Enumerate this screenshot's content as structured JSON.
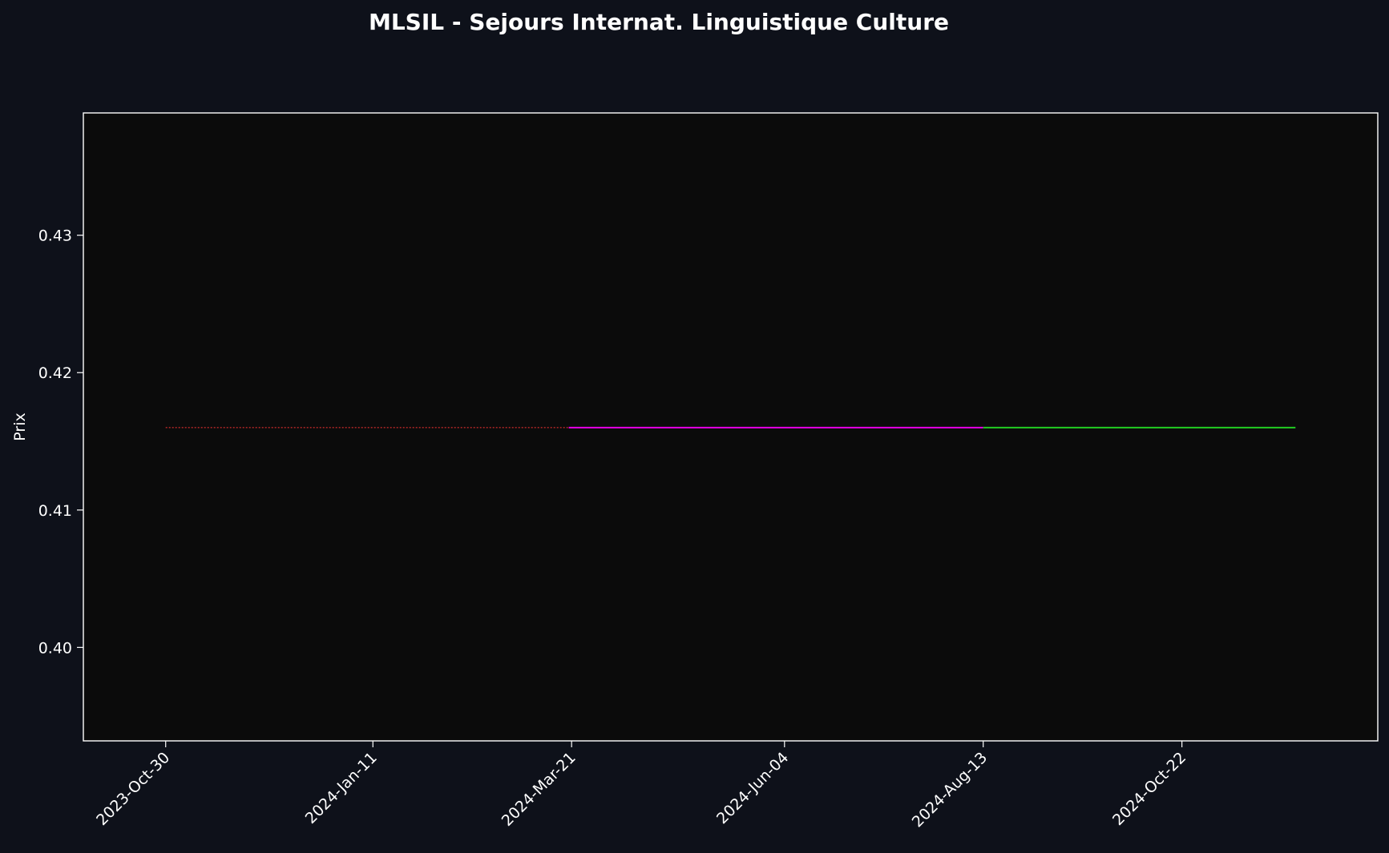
{
  "chart_data": {
    "type": "line",
    "title": "MLSIL - Sejours Internat. Linguistique Culture",
    "xlabel": "",
    "ylabel": "Prix",
    "ylim": [
      0.3932,
      0.4389
    ],
    "xlim": [
      "2023-10-01",
      "2024-12-30"
    ],
    "grid": false,
    "x_ticks": [
      "2023-Oct-30",
      "2024-Jan-11",
      "2024-Mar-21",
      "2024-Jun-04",
      "2024-Aug-13",
      "2024-Oct-22"
    ],
    "y_ticks": [
      0.4,
      0.41,
      0.42,
      0.43
    ],
    "series": [
      {
        "color": "#ff3333",
        "style": "dotted",
        "x": [
          "2023-10-30",
          "2024-03-20"
        ],
        "y": [
          0.416,
          0.416
        ]
      },
      {
        "color": "#e600e6",
        "style": "solid",
        "x": [
          "2024-03-20",
          "2024-08-13"
        ],
        "y": [
          0.416,
          0.416
        ]
      },
      {
        "color": "#22cc22",
        "style": "solid",
        "x": [
          "2024-08-13",
          "2024-12-01"
        ],
        "y": [
          0.416,
          0.416
        ]
      }
    ],
    "colors": {
      "figure_background": "#0e111a",
      "plot_background": "#0b0b0b",
      "axes": "#ffffff",
      "text": "#ffffff"
    }
  }
}
